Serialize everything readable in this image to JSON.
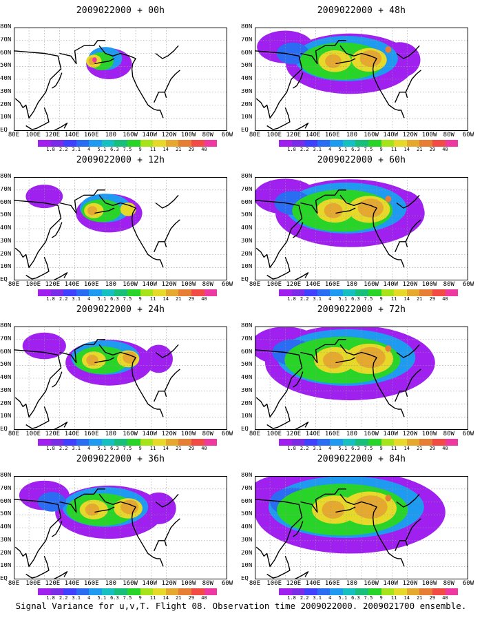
{
  "figure_caption": "Signal Variance for u,v,T. Flight 08. Observation time 2009022000. 2009021700 ensemble.",
  "panels": [
    {
      "title": "2009022000 + 00h",
      "stage": 0
    },
    {
      "title": "2009022000 + 48h",
      "stage": 4
    },
    {
      "title": "2009022000 + 12h",
      "stage": 1
    },
    {
      "title": "2009022000 + 60h",
      "stage": 5
    },
    {
      "title": "2009022000 + 24h",
      "stage": 2
    },
    {
      "title": "2009022000 + 72h",
      "stage": 6
    },
    {
      "title": "2009022000 + 36h",
      "stage": 3
    },
    {
      "title": "2009022000 + 84h",
      "stage": 7
    }
  ],
  "lat_labels": [
    "80N",
    "70N",
    "60N",
    "50N",
    "40N",
    "30N",
    "20N",
    "10N",
    "EQ"
  ],
  "lon_labels": [
    "80E",
    "100E",
    "120E",
    "140E",
    "160E",
    "180",
    "160W",
    "140W",
    "120W",
    "100W",
    "80W",
    "60W"
  ],
  "colorbar": {
    "labels": [
      "1.8",
      "2.2",
      "3.1",
      "4",
      "5.1",
      "6.3",
      "7.5",
      "9",
      "11",
      "14",
      "21",
      "29",
      "40"
    ],
    "colors": [
      "#a020f0",
      "#7a2ce6",
      "#4040ff",
      "#2a6cf2",
      "#1e9bf0",
      "#17c0c0",
      "#17bf7a",
      "#27d427",
      "#a6e31a",
      "#e6d92a",
      "#e6a930",
      "#e67e35",
      "#f24a44",
      "#ee3aa0"
    ]
  }
}
